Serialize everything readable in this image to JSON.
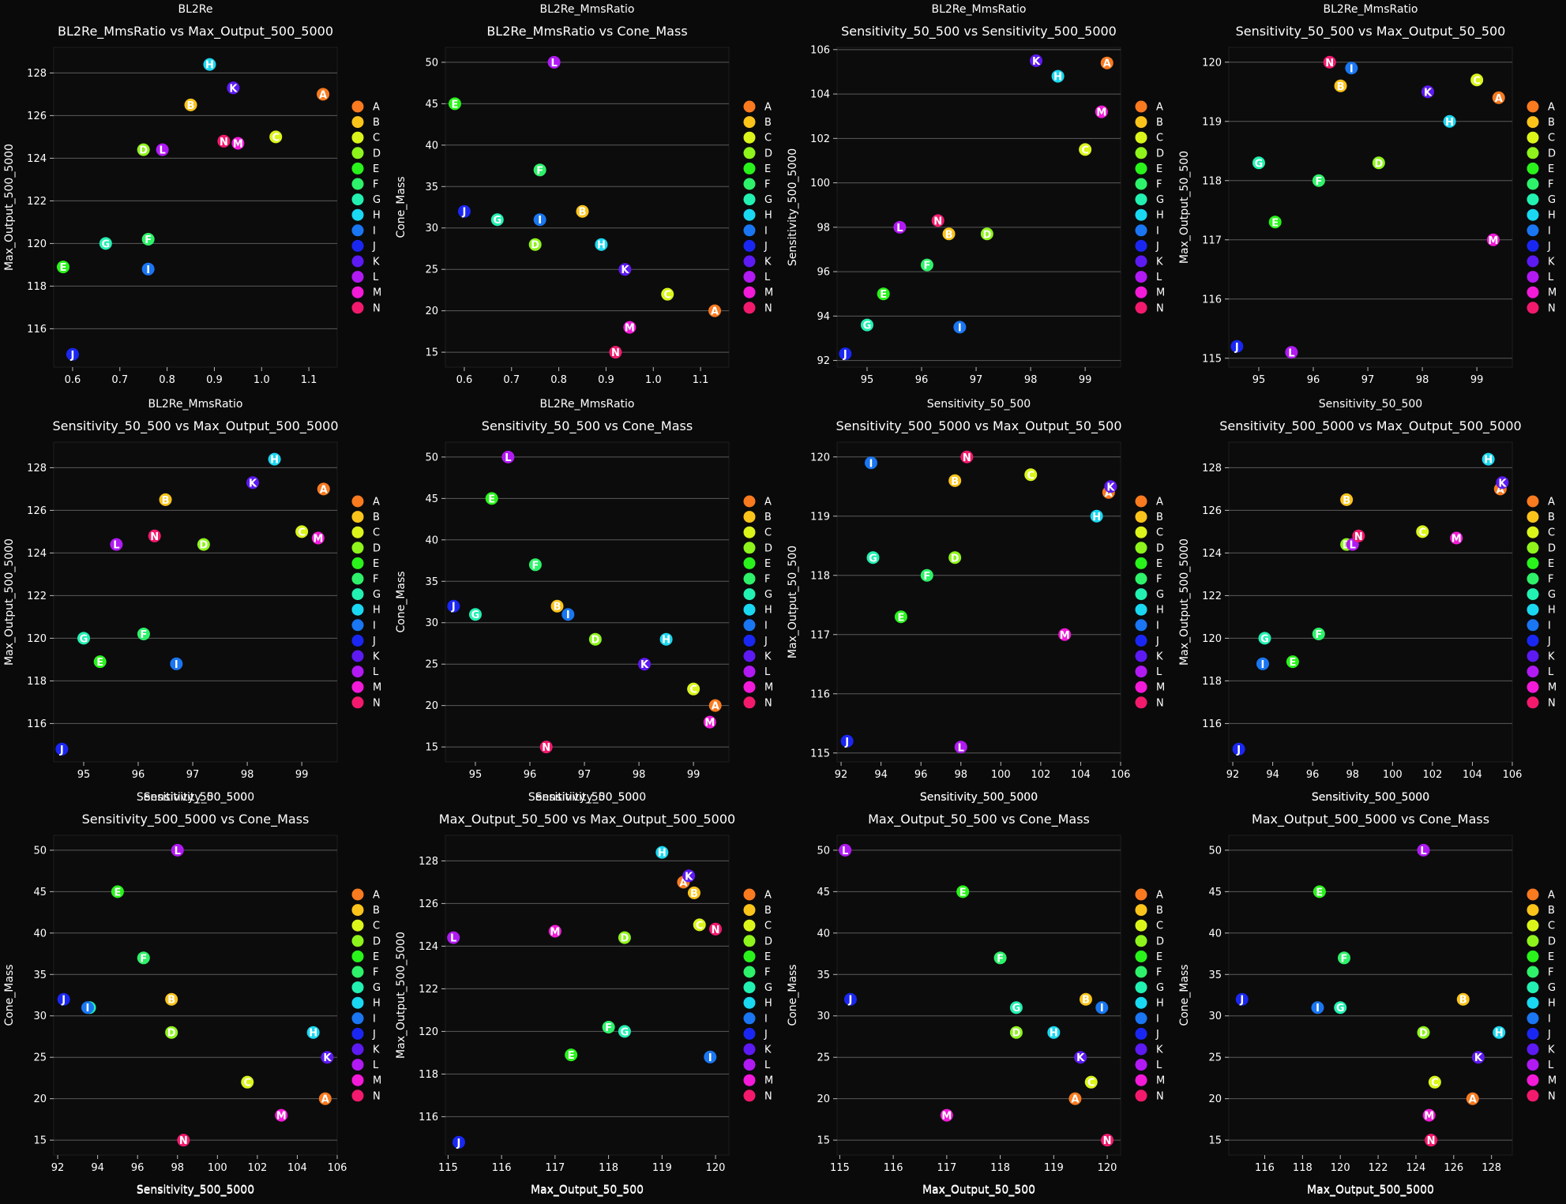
{
  "theme": {
    "background": "#0a0a0a",
    "axes_background": "#0c0c0c",
    "grid": "#5a5a5a",
    "text": "#ffffff"
  },
  "chart_data": {
    "type": "scatter",
    "groups": [
      "A",
      "B",
      "C",
      "D",
      "E",
      "F",
      "G",
      "H",
      "I",
      "J",
      "K",
      "L",
      "M",
      "N"
    ],
    "colors": [
      "#f97a1f",
      "#fbc41b",
      "#dbf51b",
      "#8ef41b",
      "#29f31b",
      "#2ef26a",
      "#22f1b2",
      "#1ad8f1",
      "#1a76f2",
      "#1a27f3",
      "#5d1af3",
      "#b11af3",
      "#f31ad8",
      "#f31a6e"
    ],
    "variables": {
      "BL2Re_MmsRatio": [
        1.13,
        0.85,
        1.03,
        0.75,
        0.58,
        0.76,
        0.67,
        0.89,
        0.76,
        0.6,
        0.94,
        0.79,
        0.95,
        0.92
      ],
      "Max_Output_500_5000": [
        127.0,
        126.5,
        125.0,
        124.4,
        118.9,
        120.2,
        120.0,
        128.4,
        118.8,
        114.8,
        127.3,
        124.4,
        124.7,
        124.8
      ],
      "Cone_Mass": [
        20,
        32,
        22,
        28,
        45,
        37,
        31,
        28,
        31,
        32,
        25,
        50,
        18,
        15
      ],
      "Sensitivity_50_500": [
        99.4,
        96.5,
        99.0,
        97.2,
        95.3,
        96.1,
        95.0,
        98.5,
        96.7,
        94.6,
        98.1,
        95.6,
        99.3,
        96.3
      ],
      "Sensitivity_500_5000": [
        105.4,
        97.7,
        101.5,
        97.7,
        95.0,
        96.3,
        93.6,
        104.8,
        93.5,
        92.3,
        105.5,
        98.0,
        103.2,
        98.3
      ],
      "Max_Output_50_500": [
        119.4,
        119.6,
        119.7,
        118.3,
        117.3,
        118.0,
        118.3,
        119.0,
        119.9,
        115.2,
        119.5,
        115.1,
        117.0,
        120.0
      ]
    },
    "panels": [
      {
        "section": "BL2Re",
        "title": "BL2Re_MmsRatio vs Max_Output_500_5000",
        "x": "BL2Re_MmsRatio",
        "y": "Max_Output_500_5000",
        "xlabel": "",
        "ylabel": "Max_Output_500_5000",
        "xlim": [
          0.56,
          1.16
        ],
        "ylim": [
          114.2,
          129.2
        ],
        "xticks": [
          "0.6",
          "0.7",
          "0.8",
          "0.9",
          "1.0",
          "1.1"
        ],
        "yticks": [
          "116",
          "118",
          "120",
          "122",
          "124",
          "126",
          "128"
        ]
      },
      {
        "section": "BL2Re_MmsRatio",
        "title": "BL2Re_MmsRatio vs Cone_Mass",
        "x": "BL2Re_MmsRatio",
        "y": "Cone_Mass",
        "xlabel": "",
        "ylabel": "Cone_Mass",
        "xlim": [
          0.56,
          1.16
        ],
        "ylim": [
          13.2,
          51.8
        ],
        "xticks": [
          "0.6",
          "0.7",
          "0.8",
          "0.9",
          "1.0",
          "1.1"
        ],
        "yticks": [
          "15",
          "20",
          "25",
          "30",
          "35",
          "40",
          "45",
          "50"
        ]
      },
      {
        "section": "BL2Re_MmsRatio",
        "title": "Sensitivity_50_500 vs Sensitivity_500_5000",
        "x": "Sensitivity_50_500",
        "y": "Sensitivity_500_5000",
        "xlabel": "",
        "ylabel": "Sensitivity_500_5000",
        "xlim": [
          94.45,
          99.65
        ],
        "ylim": [
          91.7,
          106.1
        ],
        "xticks": [
          "95",
          "96",
          "97",
          "98",
          "99"
        ],
        "yticks": [
          "92",
          "94",
          "96",
          "98",
          "100",
          "102",
          "104",
          "106"
        ]
      },
      {
        "section": "BL2Re_MmsRatio",
        "title": "Sensitivity_50_500 vs Max_Output_50_500",
        "x": "Sensitivity_50_500",
        "y": "Max_Output_50_500",
        "xlabel": "",
        "ylabel": "Max_Output_50_500",
        "xlim": [
          94.45,
          99.65
        ],
        "ylim": [
          114.85,
          120.25
        ],
        "xticks": [
          "95",
          "96",
          "97",
          "98",
          "99"
        ],
        "yticks": [
          "115",
          "116",
          "117",
          "118",
          "119",
          "120"
        ]
      },
      {
        "section": "BL2Re_MmsRatio",
        "title": "Sensitivity_50_500 vs Max_Output_500_5000",
        "x": "Sensitivity_50_500",
        "y": "Max_Output_500_5000",
        "xlabel": "Sensitivity_50_500",
        "ylabel": "Max_Output_500_5000",
        "xlim": [
          94.45,
          99.65
        ],
        "ylim": [
          114.2,
          129.2
        ],
        "xticks": [
          "95",
          "96",
          "97",
          "98",
          "99"
        ],
        "yticks": [
          "116",
          "118",
          "120",
          "122",
          "124",
          "126",
          "128"
        ]
      },
      {
        "section": "BL2Re_MmsRatio",
        "title": "Sensitivity_50_500 vs Cone_Mass",
        "x": "Sensitivity_50_500",
        "y": "Cone_Mass",
        "xlabel": "Sensitivity_50_500",
        "ylabel": "Cone_Mass",
        "xlim": [
          94.45,
          99.65
        ],
        "ylim": [
          13.2,
          51.8
        ],
        "xticks": [
          "95",
          "96",
          "97",
          "98",
          "99"
        ],
        "yticks": [
          "15",
          "20",
          "25",
          "30",
          "35",
          "40",
          "45",
          "50"
        ]
      },
      {
        "section": "Sensitivity_50_500",
        "title": "Sensitivity_500_5000 vs Max_Output_50_500",
        "x": "Sensitivity_500_5000",
        "y": "Max_Output_50_500",
        "xlabel": "Sensitivity_500_5000",
        "ylabel": "Max_Output_50_500",
        "xlim": [
          91.8,
          106.0
        ],
        "ylim": [
          114.85,
          120.25
        ],
        "xticks": [
          "92",
          "94",
          "96",
          "98",
          "100",
          "102",
          "104",
          "106"
        ],
        "yticks": [
          "115",
          "116",
          "117",
          "118",
          "119",
          "120"
        ]
      },
      {
        "section": "Sensitivity_50_500",
        "title": "Sensitivity_500_5000 vs Max_Output_500_5000",
        "x": "Sensitivity_500_5000",
        "y": "Max_Output_500_5000",
        "xlabel": "Sensitivity_500_5000",
        "ylabel": "Max_Output_500_5000",
        "xlim": [
          91.8,
          106.0
        ],
        "ylim": [
          114.2,
          129.2
        ],
        "xticks": [
          "92",
          "94",
          "96",
          "98",
          "100",
          "102",
          "104",
          "106"
        ],
        "yticks": [
          "116",
          "118",
          "120",
          "122",
          "124",
          "126",
          "128"
        ]
      },
      {
        "section": "Sensitivity_500_5000",
        "title": "Sensitivity_500_5000 vs Cone_Mass",
        "x": "Sensitivity_500_5000",
        "y": "Cone_Mass",
        "xlabel": "Sensitivity_500_5000",
        "ylabel": "Cone_Mass",
        "xlim": [
          91.8,
          106.0
        ],
        "ylim": [
          13.2,
          51.8
        ],
        "xticks": [
          "92",
          "94",
          "96",
          "98",
          "100",
          "102",
          "104",
          "106"
        ],
        "yticks": [
          "15",
          "20",
          "25",
          "30",
          "35",
          "40",
          "45",
          "50"
        ]
      },
      {
        "section": "Sensitivity_500_5000",
        "title": "Max_Output_50_500 vs Max_Output_500_5000",
        "x": "Max_Output_50_500",
        "y": "Max_Output_500_5000",
        "xlabel": "Max_Output_50_500",
        "ylabel": "Max_Output_500_5000",
        "xlim": [
          114.95,
          120.25
        ],
        "ylim": [
          114.2,
          129.2
        ],
        "xticks": [
          "115",
          "116",
          "117",
          "118",
          "119",
          "120"
        ],
        "yticks": [
          "116",
          "118",
          "120",
          "122",
          "124",
          "126",
          "128"
        ]
      },
      {
        "section": "Sensitivity_500_5000",
        "title": "Max_Output_50_500 vs Cone_Mass",
        "x": "Max_Output_50_500",
        "y": "Cone_Mass",
        "xlabel": "Max_Output_50_500",
        "ylabel": "Cone_Mass",
        "xlim": [
          114.95,
          120.25
        ],
        "ylim": [
          13.2,
          51.8
        ],
        "xticks": [
          "115",
          "116",
          "117",
          "118",
          "119",
          "120"
        ],
        "yticks": [
          "15",
          "20",
          "25",
          "30",
          "35",
          "40",
          "45",
          "50"
        ]
      },
      {
        "section": "Sensitivity_500_5000",
        "title": "Max_Output_500_5000 vs Cone_Mass",
        "x": "Max_Output_500_5000",
        "y": "Cone_Mass",
        "xlabel": "Max_Output_500_5000",
        "ylabel": "Cone_Mass",
        "xlim": [
          114.1,
          129.1
        ],
        "ylim": [
          13.2,
          51.8
        ],
        "xticks": [
          "116",
          "118",
          "120",
          "122",
          "124",
          "126",
          "128"
        ],
        "yticks": [
          "15",
          "20",
          "25",
          "30",
          "35",
          "40",
          "45",
          "50"
        ]
      }
    ],
    "bottom_labels": [
      "Sensitivity_500_5000",
      "Max_Output_50_500",
      "Max_Output_50_500",
      "Max_Output_500_5000"
    ]
  }
}
